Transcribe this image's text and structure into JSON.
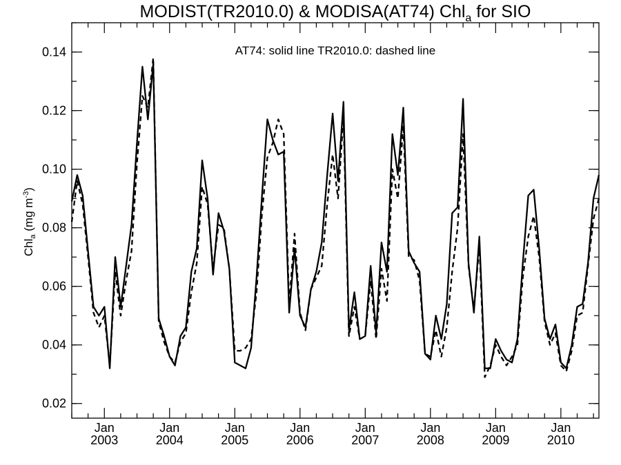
{
  "chart_data": {
    "type": "line",
    "title": {
      "prefix": "MODIST(TR2010.0) & MODISA(AT74)  Chl",
      "subscript": "a",
      "suffix": " for SIO"
    },
    "annotation": "AT74: solid line   TR2010.0: dashed line",
    "ylabel": {
      "main": "Chl",
      "subscript": "a",
      "unit_open": " (mg m",
      "unit_exp": "-3",
      "unit_close": ")"
    },
    "xlim": [
      "2002-07",
      "2010-08"
    ],
    "ylim": [
      0.015,
      0.15
    ],
    "yticks": [
      0.02,
      0.04,
      0.06,
      0.08,
      0.1,
      0.12,
      0.14
    ],
    "ytick_labels": [
      "0.02",
      "0.04",
      "0.06",
      "0.08",
      "0.10",
      "0.12",
      "0.14"
    ],
    "xticks": [
      {
        "date": "2003-01",
        "month": "Jan",
        "year": "2003"
      },
      {
        "date": "2004-01",
        "month": "Jan",
        "year": "2004"
      },
      {
        "date": "2005-01",
        "month": "Jan",
        "year": "2005"
      },
      {
        "date": "2006-01",
        "month": "Jan",
        "year": "2006"
      },
      {
        "date": "2007-01",
        "month": "Jan",
        "year": "2007"
      },
      {
        "date": "2008-01",
        "month": "Jan",
        "year": "2008"
      },
      {
        "date": "2009-01",
        "month": "Jan",
        "year": "2009"
      },
      {
        "date": "2010-01",
        "month": "Jan",
        "year": "2010"
      }
    ],
    "grid": false,
    "series": [
      {
        "style": "solid",
        "values": [
          [
            "2002-07",
            0.089
          ],
          [
            "2002-08",
            0.098
          ],
          [
            "2002-09",
            0.091
          ],
          [
            "2002-10",
            0.072
          ],
          [
            "2002-11",
            0.053
          ],
          [
            "2002-12",
            0.05
          ],
          [
            "2003-01",
            0.053
          ],
          [
            "2003-02",
            0.032
          ],
          [
            "2003-03",
            0.07
          ],
          [
            "2003-04",
            0.053
          ],
          [
            "2003-05",
            0.067
          ],
          [
            "2003-06",
            0.081
          ],
          [
            "2003-07",
            0.109
          ],
          [
            "2003-08",
            0.135
          ],
          [
            "2003-09",
            0.117
          ],
          [
            "2003-10",
            0.136
          ],
          [
            "2003-11",
            0.049
          ],
          [
            "2003-12",
            0.043
          ],
          [
            "2004-01",
            0.036
          ],
          [
            "2004-02",
            0.033
          ],
          [
            "2004-03",
            0.043
          ],
          [
            "2004-04",
            0.046
          ],
          [
            "2004-05",
            0.065
          ],
          [
            "2004-06",
            0.073
          ],
          [
            "2004-07",
            0.103
          ],
          [
            "2004-08",
            0.09
          ],
          [
            "2004-09",
            0.064
          ],
          [
            "2004-10",
            0.085
          ],
          [
            "2004-11",
            0.079
          ],
          [
            "2004-12",
            0.066
          ],
          [
            "2005-01",
            0.034
          ],
          [
            "2005-02",
            0.033
          ],
          [
            "2005-03",
            0.032
          ],
          [
            "2005-04",
            0.039
          ],
          [
            "2005-05",
            0.063
          ],
          [
            "2005-06",
            0.091
          ],
          [
            "2005-07",
            0.117
          ],
          [
            "2005-08",
            0.11
          ],
          [
            "2005-09",
            0.105
          ],
          [
            "2005-10",
            0.106
          ],
          [
            "2005-11",
            0.051
          ],
          [
            "2005-12",
            0.073
          ],
          [
            "2006-01",
            0.05
          ],
          [
            "2006-02",
            0.046
          ],
          [
            "2006-03",
            0.059
          ],
          [
            "2006-04",
            0.065
          ],
          [
            "2006-05",
            0.075
          ],
          [
            "2006-06",
            0.098
          ],
          [
            "2006-07",
            0.119
          ],
          [
            "2006-08",
            0.096
          ],
          [
            "2006-09",
            0.123
          ],
          [
            "2006-10",
            0.045
          ],
          [
            "2006-11",
            0.058
          ],
          [
            "2006-12",
            0.042
          ],
          [
            "2007-01",
            0.043
          ],
          [
            "2007-02",
            0.067
          ],
          [
            "2007-03",
            0.044
          ],
          [
            "2007-04",
            0.075
          ],
          [
            "2007-05",
            0.065
          ],
          [
            "2007-06",
            0.112
          ],
          [
            "2007-07",
            0.098
          ],
          [
            "2007-08",
            0.121
          ],
          [
            "2007-09",
            0.072
          ],
          [
            "2007-10",
            0.068
          ],
          [
            "2007-11",
            0.065
          ],
          [
            "2007-12",
            0.037
          ],
          [
            "2008-01",
            0.035
          ],
          [
            "2008-02",
            0.05
          ],
          [
            "2008-03",
            0.042
          ],
          [
            "2008-04",
            0.054
          ],
          [
            "2008-05",
            0.085
          ],
          [
            "2008-06",
            0.087
          ],
          [
            "2008-07",
            0.124
          ],
          [
            "2008-08",
            0.068
          ],
          [
            "2008-09",
            0.051
          ],
          [
            "2008-10",
            0.077
          ],
          [
            "2008-11",
            0.032
          ],
          [
            "2008-12",
            0.032
          ],
          [
            "2009-01",
            0.042
          ],
          [
            "2009-02",
            0.038
          ],
          [
            "2009-03",
            0.035
          ],
          [
            "2009-04",
            0.034
          ],
          [
            "2009-05",
            0.042
          ],
          [
            "2009-06",
            0.068
          ],
          [
            "2009-07",
            0.091
          ],
          [
            "2009-08",
            0.093
          ],
          [
            "2009-09",
            0.073
          ],
          [
            "2009-10",
            0.049
          ],
          [
            "2009-11",
            0.042
          ],
          [
            "2009-12",
            0.047
          ],
          [
            "2010-01",
            0.034
          ],
          [
            "2010-02",
            0.032
          ],
          [
            "2010-03",
            0.04
          ],
          [
            "2010-04",
            0.053
          ],
          [
            "2010-05",
            0.054
          ],
          [
            "2010-06",
            0.068
          ],
          [
            "2010-07",
            0.09
          ],
          [
            "2010-08",
            0.098
          ]
        ]
      },
      {
        "style": "dashed",
        "values": [
          [
            "2002-07",
            0.082
          ],
          [
            "2002-08",
            0.096
          ],
          [
            "2002-09",
            0.088
          ],
          [
            "2002-10",
            0.07
          ],
          [
            "2002-11",
            0.051
          ],
          [
            "2002-12",
            0.046
          ],
          [
            "2003-01",
            0.05
          ],
          [
            "2003-02",
            0.033
          ],
          [
            "2003-03",
            0.065
          ],
          [
            "2003-04",
            0.05
          ],
          [
            "2003-05",
            0.062
          ],
          [
            "2003-06",
            0.072
          ],
          [
            "2003-07",
            0.102
          ],
          [
            "2003-08",
            0.125
          ],
          [
            "2003-09",
            0.121
          ],
          [
            "2003-10",
            0.138
          ],
          [
            "2003-11",
            0.048
          ],
          [
            "2003-12",
            0.041
          ],
          [
            "2004-01",
            0.036
          ],
          [
            "2004-02",
            0.034
          ],
          [
            "2004-03",
            0.041
          ],
          [
            "2004-04",
            0.044
          ],
          [
            "2004-05",
            0.058
          ],
          [
            "2004-06",
            0.068
          ],
          [
            "2004-07",
            0.094
          ],
          [
            "2004-08",
            0.088
          ],
          [
            "2004-09",
            0.066
          ],
          [
            "2004-10",
            0.081
          ],
          [
            "2004-11",
            0.08
          ],
          [
            "2004-12",
            0.066
          ],
          [
            "2005-01",
            0.038
          ],
          [
            "2005-02",
            0.038
          ],
          [
            "2005-03",
            0.039
          ],
          [
            "2005-04",
            0.042
          ],
          [
            "2005-05",
            0.058
          ],
          [
            "2005-06",
            0.085
          ],
          [
            "2005-07",
            0.104
          ],
          [
            "2005-08",
            0.109
          ],
          [
            "2005-09",
            0.117
          ],
          [
            "2005-10",
            0.112
          ],
          [
            "2005-11",
            0.054
          ],
          [
            "2005-12",
            0.078
          ],
          [
            "2006-01",
            0.051
          ],
          [
            "2006-02",
            0.045
          ],
          [
            "2006-03",
            0.059
          ],
          [
            "2006-04",
            0.063
          ],
          [
            "2006-05",
            0.067
          ],
          [
            "2006-06",
            0.088
          ],
          [
            "2006-07",
            0.105
          ],
          [
            "2006-08",
            0.09
          ],
          [
            "2006-09",
            0.118
          ],
          [
            "2006-10",
            0.043
          ],
          [
            "2006-11",
            0.053
          ],
          [
            "2006-12",
            0.042
          ],
          [
            "2007-01",
            0.043
          ],
          [
            "2007-02",
            0.062
          ],
          [
            "2007-03",
            0.042
          ],
          [
            "2007-04",
            0.066
          ],
          [
            "2007-05",
            0.055
          ],
          [
            "2007-06",
            0.1
          ],
          [
            "2007-07",
            0.09
          ],
          [
            "2007-08",
            0.115
          ],
          [
            "2007-09",
            0.07
          ],
          [
            "2007-10",
            0.069
          ],
          [
            "2007-11",
            0.062
          ],
          [
            "2007-12",
            0.037
          ],
          [
            "2008-01",
            0.036
          ],
          [
            "2008-02",
            0.045
          ],
          [
            "2008-03",
            0.036
          ],
          [
            "2008-04",
            0.046
          ],
          [
            "2008-05",
            0.065
          ],
          [
            "2008-06",
            0.08
          ],
          [
            "2008-07",
            0.112
          ],
          [
            "2008-08",
            0.067
          ],
          [
            "2008-09",
            0.052
          ],
          [
            "2008-10",
            0.074
          ],
          [
            "2008-11",
            0.029
          ],
          [
            "2008-12",
            0.033
          ],
          [
            "2009-01",
            0.04
          ],
          [
            "2009-02",
            0.036
          ],
          [
            "2009-03",
            0.033
          ],
          [
            "2009-04",
            0.036
          ],
          [
            "2009-05",
            0.04
          ],
          [
            "2009-06",
            0.063
          ],
          [
            "2009-07",
            0.077
          ],
          [
            "2009-08",
            0.084
          ],
          [
            "2009-09",
            0.07
          ],
          [
            "2009-10",
            0.048
          ],
          [
            "2009-11",
            0.04
          ],
          [
            "2009-12",
            0.044
          ],
          [
            "2010-01",
            0.033
          ],
          [
            "2010-02",
            0.031
          ],
          [
            "2010-03",
            0.038
          ],
          [
            "2010-04",
            0.05
          ],
          [
            "2010-05",
            0.051
          ],
          [
            "2010-06",
            0.067
          ],
          [
            "2010-07",
            0.083
          ],
          [
            "2010-08",
            0.09
          ]
        ]
      }
    ]
  }
}
